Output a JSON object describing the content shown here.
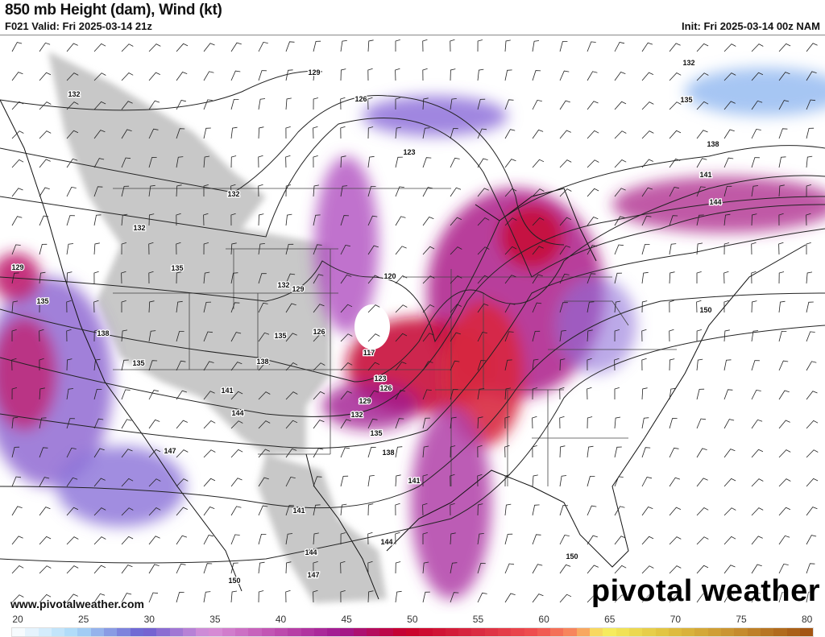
{
  "header": {
    "title": "850 mb Height (dam), Wind (kt)",
    "valid": "F021 Valid: Fri 2025-03-14 21z",
    "init": "Init: Fri 2025-03-14 00z NAM"
  },
  "footer": {
    "website": "www.pivotalweather.com",
    "logo": "pivotal weather"
  },
  "colorbar": {
    "units": "kt",
    "min": 20,
    "max": 81,
    "ticks": [
      "20",
      "25",
      "30",
      "35",
      "40",
      "45",
      "50",
      "55",
      "60",
      "65",
      "70",
      "75",
      "80"
    ],
    "anchors": [
      {
        "v": 20,
        "c": "#ffffff"
      },
      {
        "v": 25,
        "c": "#a8d8f8"
      },
      {
        "v": 30,
        "c": "#6a5ed0"
      },
      {
        "v": 35,
        "c": "#d890d8"
      },
      {
        "v": 40,
        "c": "#c050b0"
      },
      {
        "v": 45,
        "c": "#a01890"
      },
      {
        "v": 50,
        "c": "#c8002a"
      },
      {
        "v": 55,
        "c": "#d82840"
      },
      {
        "v": 60,
        "c": "#f05050"
      },
      {
        "v": 63,
        "c": "#f89060"
      },
      {
        "v": 65,
        "c": "#f8f060"
      },
      {
        "v": 70,
        "c": "#e0c040"
      },
      {
        "v": 75,
        "c": "#c89030"
      },
      {
        "v": 81,
        "c": "#a05010"
      }
    ]
  },
  "map": {
    "terrain_color": "#c8c8c8",
    "contour_labels": [
      "132",
      "129",
      "126",
      "123",
      "135",
      "138",
      "141",
      "144",
      "132",
      "132",
      "132",
      "129",
      "135",
      "135",
      "132",
      "129",
      "120",
      "138",
      "126",
      "135",
      "117",
      "138",
      "123",
      "126",
      "135",
      "141",
      "129",
      "144",
      "132",
      "135",
      "147",
      "138",
      "141",
      "141",
      "144",
      "144",
      "147",
      "150",
      "150",
      "150"
    ]
  }
}
